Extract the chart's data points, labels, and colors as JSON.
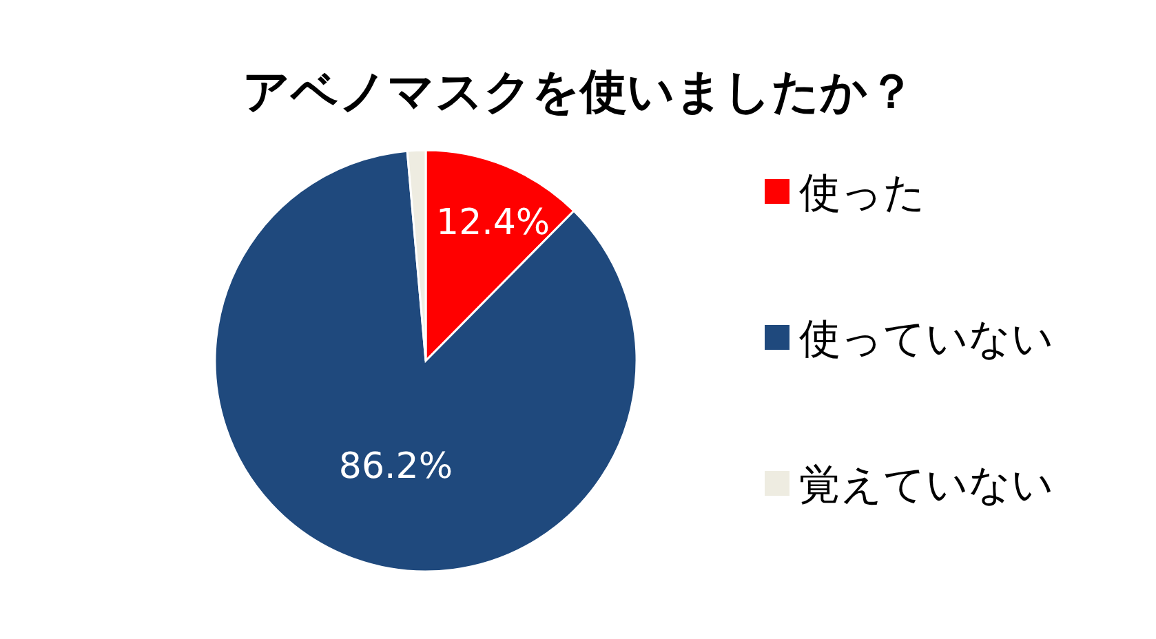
{
  "chart_data": {
    "type": "pie",
    "title": "アベノマスクを使いましたか？",
    "categories": [
      "使った",
      "使っていない",
      "覚えていない"
    ],
    "values": [
      12.4,
      86.2,
      1.4
    ],
    "colors": [
      "#ff0000",
      "#1f497d",
      "#eeece1"
    ],
    "value_labels": [
      "12.4%",
      "86.2%",
      null
    ],
    "legend": "right"
  }
}
